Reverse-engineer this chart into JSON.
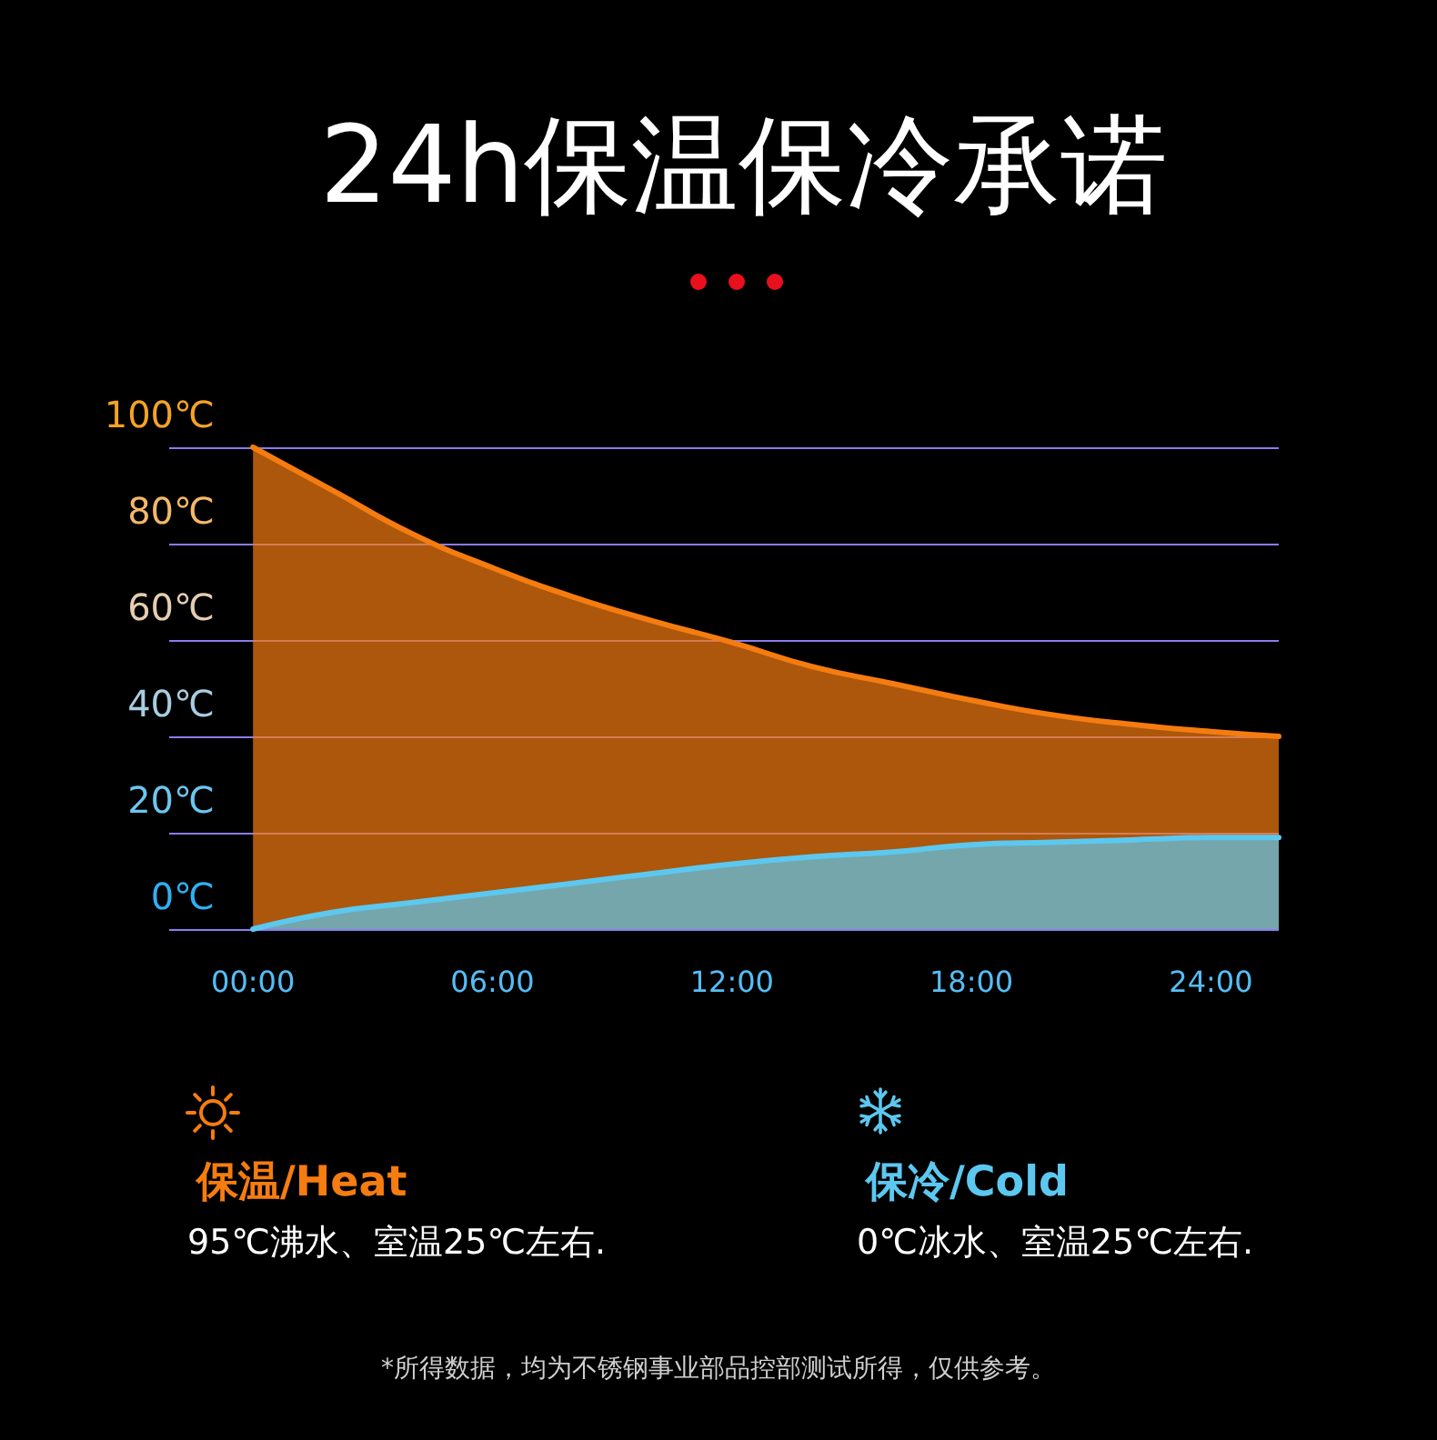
{
  "chart_data": {
    "type": "area",
    "title": "24h保温保冷承诺",
    "x": [
      0,
      2,
      4,
      6,
      8,
      10,
      12,
      14,
      16,
      18,
      20,
      22,
      24,
      25.7
    ],
    "series": [
      {
        "name": "保温/Heat",
        "color": "#f57c10",
        "values": [
          100,
          91,
          82,
          75,
          69,
          64,
          59.5,
          54.5,
          51,
          47.5,
          44.5,
          42.5,
          41,
          40
        ]
      },
      {
        "name": "保冷/Cold",
        "color": "#5cc8f0",
        "values": [
          0,
          3.5,
          5.5,
          7.5,
          9.5,
          11.5,
          13.5,
          15,
          16,
          17.5,
          18,
          18.5,
          19,
          19
        ]
      }
    ],
    "xlim": [
      -2.1,
      25.7
    ],
    "xticks": [
      {
        "value": 0,
        "label": "00:00"
      },
      {
        "value": 6,
        "label": "06:00"
      },
      {
        "value": 12,
        "label": "12:00"
      },
      {
        "value": 18,
        "label": "18:00"
      },
      {
        "value": 24,
        "label": "24:00"
      }
    ],
    "ylim": [
      0,
      100
    ],
    "yticks": [
      {
        "value": 0,
        "label": "0℃"
      },
      {
        "value": 20,
        "label": "20℃"
      },
      {
        "value": 40,
        "label": "40℃"
      },
      {
        "value": 60,
        "label": "60℃"
      },
      {
        "value": 80,
        "label": "80℃"
      },
      {
        "value": 100,
        "label": "100℃"
      }
    ],
    "grid": "y",
    "legend": "bottom",
    "marker": "none",
    "annotations": [
      "95℃沸水、室温25℃左右.",
      "0℃冰水、室温25℃左右.",
      "*所得数据，均为不锈钢事业部品控部测试所得，仅供参考。"
    ]
  }
}
